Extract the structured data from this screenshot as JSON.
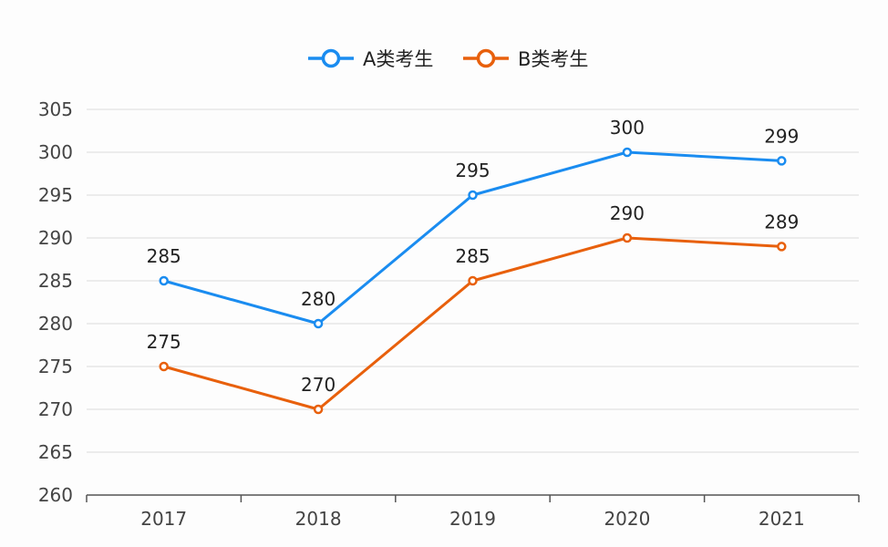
{
  "chart_data": {
    "type": "line",
    "categories": [
      "2017",
      "2018",
      "2019",
      "2020",
      "2021"
    ],
    "series": [
      {
        "name": "A类考生",
        "values": [
          285,
          280,
          295,
          300,
          299
        ],
        "color": "#1a8cf0"
      },
      {
        "name": "B类考生",
        "values": [
          275,
          270,
          285,
          290,
          289
        ],
        "color": "#e8600c"
      }
    ],
    "title": "",
    "xlabel": "",
    "ylabel": "",
    "ylim": [
      260,
      305
    ],
    "yticks": [
      260,
      265,
      270,
      275,
      280,
      285,
      290,
      295,
      300,
      305
    ],
    "grid": "horizontal",
    "legend": "top-center",
    "data_labels": true
  }
}
